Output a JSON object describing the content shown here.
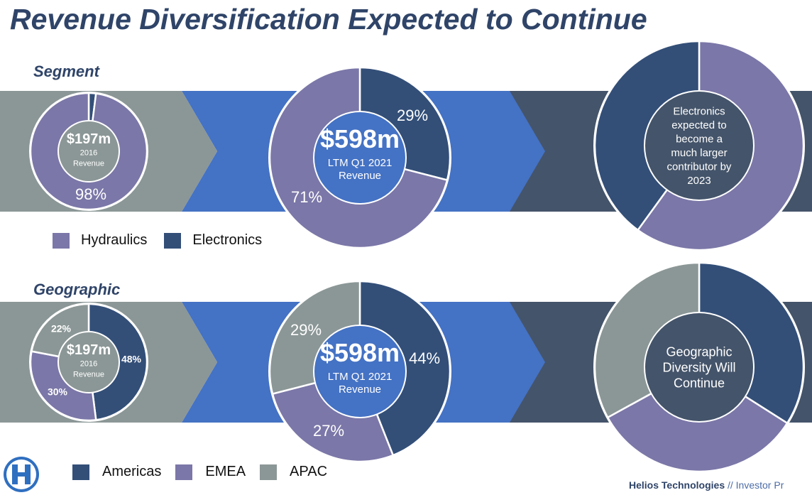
{
  "title": "Revenue Diversification Expected to Continue",
  "sections": {
    "segment": {
      "label": "Segment"
    },
    "geographic": {
      "label": "Geographic"
    }
  },
  "legends": {
    "segment": [
      {
        "label": "Hydraulics",
        "color": "#7b77a8"
      },
      {
        "label": "Electronics",
        "color": "#334f78"
      }
    ],
    "geographic": [
      {
        "label": "Americas",
        "color": "#334f78"
      },
      {
        "label": "EMEA",
        "color": "#7b77a8"
      },
      {
        "label": "APAC",
        "color": "#8b9796"
      }
    ]
  },
  "colors": {
    "band_gray": "#8b9796",
    "band_blue": "#4472c4",
    "band_dark": "#44546a",
    "hole_gray": "#8b9796",
    "hole_blue": "#4472c4",
    "hole_dark": "#44546a"
  },
  "chart_data": [
    {
      "type": "pie",
      "id": "segment-2016",
      "center_value": "$197m",
      "center_lines": [
        "2016",
        "Revenue"
      ],
      "slices": [
        {
          "name": "Electronics",
          "value": 2,
          "label": ""
        },
        {
          "name": "Hydraulics",
          "value": 98,
          "label": "98%"
        }
      ]
    },
    {
      "type": "pie",
      "id": "segment-ltm",
      "center_value": "$598m",
      "center_lines": [
        "LTM Q1 2021",
        "Revenue"
      ],
      "slices": [
        {
          "name": "Electronics",
          "value": 29,
          "label": "29%"
        },
        {
          "name": "Hydraulics",
          "value": 71,
          "label": "71%"
        }
      ]
    },
    {
      "type": "pie",
      "id": "segment-2023",
      "center_value": "",
      "center_lines": [
        "Electronics",
        "expected to",
        "become a",
        "much larger",
        "contributor by",
        "2023"
      ],
      "slices": [
        {
          "name": "Hydraulics",
          "value": 60,
          "label": ""
        },
        {
          "name": "Electronics",
          "value": 40,
          "label": ""
        }
      ]
    },
    {
      "type": "pie",
      "id": "geo-2016",
      "center_value": "$197m",
      "center_lines": [
        "2016",
        "Revenue"
      ],
      "slices": [
        {
          "name": "Americas",
          "value": 48,
          "label": "48%"
        },
        {
          "name": "EMEA",
          "value": 30,
          "label": "30%"
        },
        {
          "name": "APAC",
          "value": 22,
          "label": "22%"
        }
      ]
    },
    {
      "type": "pie",
      "id": "geo-ltm",
      "center_value": "$598m",
      "center_lines": [
        "LTM Q1 2021",
        "Revenue"
      ],
      "slices": [
        {
          "name": "Americas",
          "value": 44,
          "label": "44%"
        },
        {
          "name": "EMEA",
          "value": 27,
          "label": "27%"
        },
        {
          "name": "APAC",
          "value": 29,
          "label": "29%"
        }
      ]
    },
    {
      "type": "pie",
      "id": "geo-future",
      "center_value": "",
      "center_lines": [
        "Geographic",
        "Diversity Will",
        "Continue"
      ],
      "slices": [
        {
          "name": "Americas",
          "value": 34,
          "label": ""
        },
        {
          "name": "EMEA",
          "value": 33,
          "label": ""
        },
        {
          "name": "APAC",
          "value": 33,
          "label": ""
        }
      ]
    }
  ],
  "footer": {
    "brand": "Helios Technologies",
    "rest": " // Investor Pr"
  },
  "logo": {
    "icon": "helios-h-logo"
  }
}
